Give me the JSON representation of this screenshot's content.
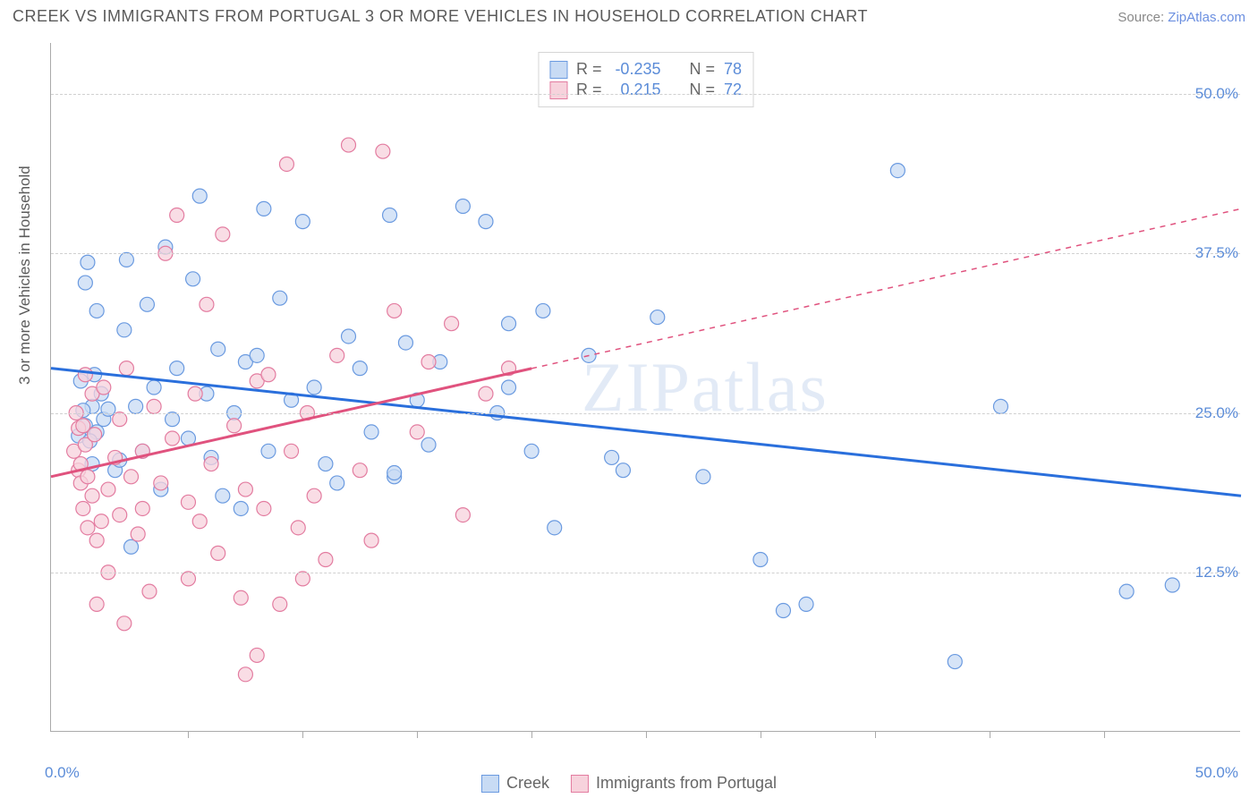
{
  "title": "CREEK VS IMMIGRANTS FROM PORTUGAL 3 OR MORE VEHICLES IN HOUSEHOLD CORRELATION CHART",
  "source_prefix": "Source: ",
  "source_link": "ZipAtlas.com",
  "watermark": "ZIPatlas",
  "ylabel": "3 or more Vehicles in Household",
  "axis": {
    "x_min_label": "0.0%",
    "x_max_label": "50.0%",
    "y_ticks": [
      {
        "val": 50.0,
        "label": "50.0%"
      },
      {
        "val": 37.5,
        "label": "37.5%"
      },
      {
        "val": 25.0,
        "label": "25.0%"
      },
      {
        "val": 12.5,
        "label": "12.5%"
      }
    ],
    "x_tick_positions": [
      5,
      10,
      15,
      20,
      25,
      30,
      35,
      40,
      45
    ]
  },
  "chart": {
    "type": "scatter",
    "xlim": [
      -1,
      51
    ],
    "ylim": [
      0,
      54
    ],
    "background_color": "#ffffff",
    "grid_color": "#d0d0d0",
    "marker_radius": 8,
    "marker_stroke_width": 1.2,
    "line_width": 3,
    "dash_pattern": "6 6",
    "series": [
      {
        "name": "Creek",
        "fill": "#c8dbf4",
        "stroke": "#6a9ae0",
        "line_color": "#2a6fdc",
        "r_label": "R =",
        "r_value": "-0.235",
        "n_label": "N =",
        "n_value": "78",
        "trend": {
          "x1": -1,
          "y1": 28.5,
          "x2": 51,
          "y2": 18.5
        },
        "trend_solid_until": 51,
        "points": [
          [
            0.2,
            23.2
          ],
          [
            0.3,
            27.5
          ],
          [
            0.5,
            35.2
          ],
          [
            0.5,
            24.0
          ],
          [
            0.6,
            36.8
          ],
          [
            0.8,
            21.0
          ],
          [
            0.8,
            25.5
          ],
          [
            0.9,
            28.0
          ],
          [
            1.0,
            33.0
          ],
          [
            1.0,
            23.5
          ],
          [
            1.2,
            26.5
          ],
          [
            1.3,
            24.5
          ],
          [
            1.5,
            25.3
          ],
          [
            1.8,
            20.5
          ],
          [
            2.0,
            21.3
          ],
          [
            2.2,
            31.5
          ],
          [
            2.3,
            37.0
          ],
          [
            2.5,
            14.5
          ],
          [
            2.7,
            25.5
          ],
          [
            3.0,
            22.0
          ],
          [
            3.2,
            33.5
          ],
          [
            3.5,
            27.0
          ],
          [
            3.8,
            19.0
          ],
          [
            4.0,
            38.0
          ],
          [
            4.3,
            24.5
          ],
          [
            4.5,
            28.5
          ],
          [
            5.0,
            23.0
          ],
          [
            5.2,
            35.5
          ],
          [
            5.5,
            42.0
          ],
          [
            5.8,
            26.5
          ],
          [
            6.0,
            21.5
          ],
          [
            6.3,
            30.0
          ],
          [
            6.5,
            18.5
          ],
          [
            7.0,
            25.0
          ],
          [
            7.3,
            17.5
          ],
          [
            7.5,
            29.0
          ],
          [
            8.0,
            29.5
          ],
          [
            8.3,
            41.0
          ],
          [
            8.5,
            22.0
          ],
          [
            9.0,
            34.0
          ],
          [
            9.5,
            26.0
          ],
          [
            10.0,
            40.0
          ],
          [
            10.5,
            27.0
          ],
          [
            11.0,
            21.0
          ],
          [
            11.5,
            19.5
          ],
          [
            12.0,
            31.0
          ],
          [
            12.5,
            28.5
          ],
          [
            13.0,
            23.5
          ],
          [
            13.8,
            40.5
          ],
          [
            14.0,
            20.0
          ],
          [
            14.0,
            20.3
          ],
          [
            14.5,
            30.5
          ],
          [
            15.0,
            26.0
          ],
          [
            15.5,
            22.5
          ],
          [
            16.0,
            29.0
          ],
          [
            17.0,
            41.2
          ],
          [
            18.0,
            40.0
          ],
          [
            18.5,
            25.0
          ],
          [
            19.0,
            27.0
          ],
          [
            19.0,
            32.0
          ],
          [
            20.0,
            22.0
          ],
          [
            20.5,
            33.0
          ],
          [
            21.0,
            16.0
          ],
          [
            22.5,
            29.5
          ],
          [
            23.5,
            21.5
          ],
          [
            24.0,
            20.5
          ],
          [
            25.5,
            32.5
          ],
          [
            27.5,
            20.0
          ],
          [
            30.0,
            13.5
          ],
          [
            31.0,
            9.5
          ],
          [
            32.0,
            10.0
          ],
          [
            36.0,
            44.0
          ],
          [
            38.5,
            5.5
          ],
          [
            40.5,
            25.5
          ],
          [
            46.0,
            11.0
          ],
          [
            48.0,
            11.5
          ],
          [
            0.4,
            25.2
          ],
          [
            0.7,
            22.8
          ]
        ]
      },
      {
        "name": "Immigrants from Portugal",
        "fill": "#f7d2dc",
        "stroke": "#e37ca0",
        "line_color": "#e0527e",
        "r_label": "R =",
        "r_value": "0.215",
        "n_label": "N =",
        "n_value": "72",
        "trend": {
          "x1": -1,
          "y1": 20.0,
          "x2": 51,
          "y2": 41.0
        },
        "trend_solid_until": 20,
        "points": [
          [
            0.0,
            22.0
          ],
          [
            0.1,
            25.0
          ],
          [
            0.2,
            20.5
          ],
          [
            0.2,
            23.8
          ],
          [
            0.3,
            21.0
          ],
          [
            0.3,
            19.5
          ],
          [
            0.4,
            17.5
          ],
          [
            0.4,
            24.0
          ],
          [
            0.5,
            28.0
          ],
          [
            0.5,
            22.5
          ],
          [
            0.6,
            16.0
          ],
          [
            0.6,
            20.0
          ],
          [
            0.8,
            18.5
          ],
          [
            0.8,
            26.5
          ],
          [
            0.9,
            23.3
          ],
          [
            1.0,
            10.0
          ],
          [
            1.0,
            15.0
          ],
          [
            1.2,
            16.5
          ],
          [
            1.3,
            27.0
          ],
          [
            1.5,
            12.5
          ],
          [
            1.5,
            19.0
          ],
          [
            1.8,
            21.5
          ],
          [
            2.0,
            17.0
          ],
          [
            2.0,
            24.5
          ],
          [
            2.2,
            8.5
          ],
          [
            2.3,
            28.5
          ],
          [
            2.5,
            20.0
          ],
          [
            2.8,
            15.5
          ],
          [
            3.0,
            22.0
          ],
          [
            3.0,
            17.5
          ],
          [
            3.3,
            11.0
          ],
          [
            3.5,
            25.5
          ],
          [
            3.8,
            19.5
          ],
          [
            4.0,
            37.5
          ],
          [
            4.3,
            23.0
          ],
          [
            4.5,
            40.5
          ],
          [
            5.0,
            12.0
          ],
          [
            5.0,
            18.0
          ],
          [
            5.3,
            26.5
          ],
          [
            5.5,
            16.5
          ],
          [
            5.8,
            33.5
          ],
          [
            6.0,
            21.0
          ],
          [
            6.3,
            14.0
          ],
          [
            6.5,
            39.0
          ],
          [
            7.0,
            24.0
          ],
          [
            7.3,
            10.5
          ],
          [
            7.5,
            19.0
          ],
          [
            7.5,
            4.5
          ],
          [
            8.0,
            27.5
          ],
          [
            8.0,
            6.0
          ],
          [
            8.3,
            17.5
          ],
          [
            8.5,
            28.0
          ],
          [
            9.0,
            10.0
          ],
          [
            9.3,
            44.5
          ],
          [
            9.5,
            22.0
          ],
          [
            9.8,
            16.0
          ],
          [
            10.0,
            12.0
          ],
          [
            10.2,
            25.0
          ],
          [
            10.5,
            18.5
          ],
          [
            11.0,
            13.5
          ],
          [
            11.5,
            29.5
          ],
          [
            12.0,
            46.0
          ],
          [
            12.5,
            20.5
          ],
          [
            13.0,
            15.0
          ],
          [
            14.0,
            33.0
          ],
          [
            15.0,
            23.5
          ],
          [
            15.5,
            29.0
          ],
          [
            16.5,
            32.0
          ],
          [
            17.0,
            17.0
          ],
          [
            18.0,
            26.5
          ],
          [
            19.0,
            28.5
          ],
          [
            13.5,
            45.5
          ]
        ]
      }
    ]
  },
  "legend": {
    "series1": "Creek",
    "series2": "Immigrants from Portugal"
  }
}
